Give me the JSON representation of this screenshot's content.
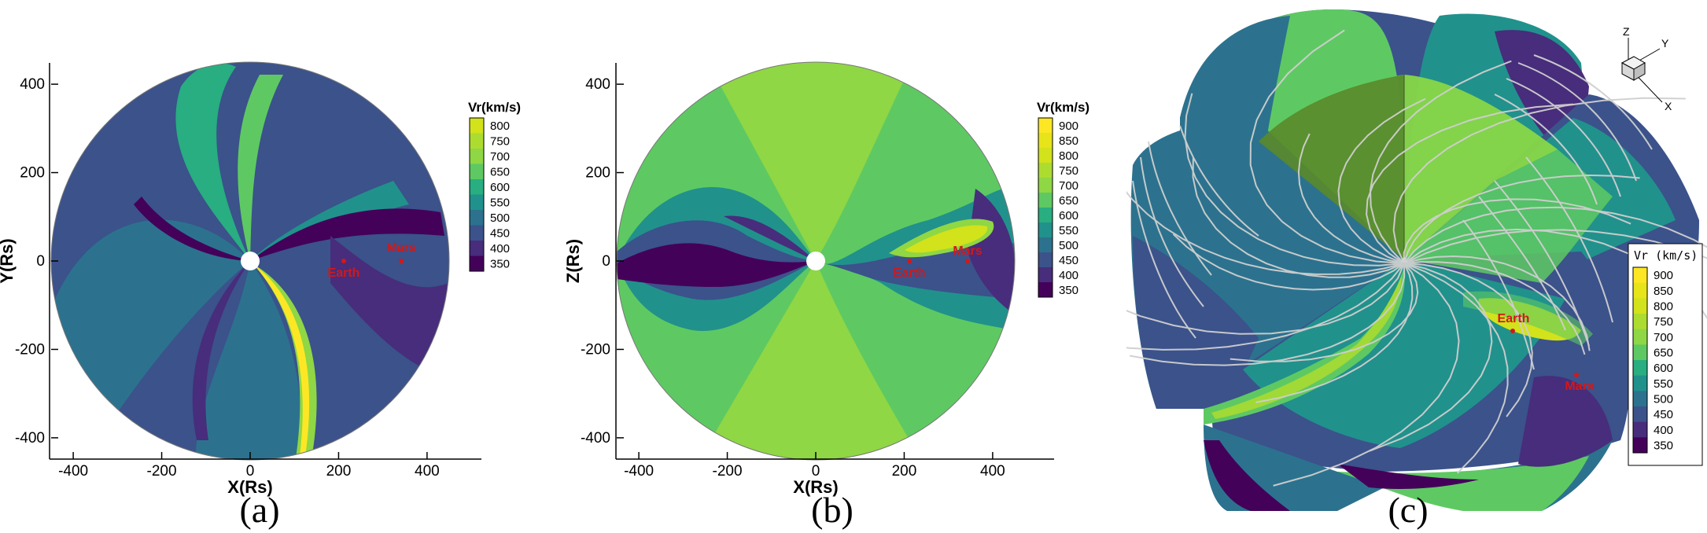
{
  "figure": {
    "panels": [
      {
        "caption": "(a)",
        "xlabel": "X(Rs)",
        "ylabel": "Y(Rs)",
        "xticks": [
          "-400",
          "-200",
          "0",
          "200",
          "400"
        ],
        "yticks": [
          "400",
          "200",
          "0",
          "-200",
          "-400"
        ],
        "colorbar_title": "Vr(km/s)",
        "colorbar_levels": [
          "800",
          "750",
          "700",
          "650",
          "600",
          "550",
          "500",
          "450",
          "400",
          "350"
        ],
        "markers": [
          "Earth",
          "Mars"
        ]
      },
      {
        "caption": "(b)",
        "xlabel": "X(Rs)",
        "ylabel": "Z(Rs)",
        "xticks": [
          "-400",
          "-200",
          "0",
          "200",
          "400"
        ],
        "yticks": [
          "400",
          "200",
          "0",
          "-200",
          "-400"
        ],
        "colorbar_title": "Vr(km/s)",
        "colorbar_levels": [
          "900",
          "850",
          "800",
          "750",
          "700",
          "650",
          "600",
          "550",
          "500",
          "450",
          "400",
          "350"
        ],
        "markers": [
          "Earth",
          "Mars"
        ]
      },
      {
        "caption": "(c)",
        "axes_triad": [
          "Z",
          "Y",
          "X"
        ],
        "colorbar_title": "Vr (km/s)",
        "colorbar_levels": [
          "900",
          "850",
          "800",
          "750",
          "700",
          "650",
          "600",
          "550",
          "500",
          "450",
          "400",
          "350"
        ],
        "markers": [
          "Earth",
          "Mars"
        ]
      }
    ],
    "palette": {
      "350": "#44015a",
      "400": "#472d7b",
      "450": "#3b528b",
      "500": "#2c728e",
      "550": "#21918c",
      "600": "#28ae80",
      "650": "#5ec962",
      "700": "#8fd744",
      "750": "#addc30",
      "800": "#d2e21b",
      "850": "#e7e419",
      "900": "#fde725"
    },
    "marker_color": "#d31818"
  },
  "chart_data": [
    {
      "type": "heatmap",
      "title": "",
      "xlabel": "X(Rs)",
      "ylabel": "Y(Rs)",
      "xlim": [
        -450,
        450
      ],
      "ylim": [
        -450,
        450
      ],
      "grid": false,
      "legend": "right (colorbar)",
      "colorbar": {
        "label": "Vr(km/s)",
        "range": [
          350,
          800
        ],
        "step": 50
      },
      "points": [
        {
          "name": "Earth",
          "x": 215,
          "y": 0
        },
        {
          "name": "Mars",
          "x": 345,
          "y": 0
        }
      ]
    },
    {
      "type": "heatmap",
      "title": "",
      "xlabel": "X(Rs)",
      "ylabel": "Z(Rs)",
      "xlim": [
        -450,
        450
      ],
      "ylim": [
        -450,
        450
      ],
      "grid": false,
      "legend": "right (colorbar)",
      "colorbar": {
        "label": "Vr(km/s)",
        "range": [
          350,
          900
        ],
        "step": 50
      },
      "points": [
        {
          "name": "Earth",
          "x": 215,
          "y": 0
        },
        {
          "name": "Mars",
          "x": 345,
          "y": 0
        }
      ]
    },
    {
      "type": "heatmap",
      "title": "",
      "legend": "right (colorbar)",
      "colorbar": {
        "label": "Vr (km/s)",
        "range": [
          350,
          900
        ],
        "step": 50
      },
      "points": [
        {
          "name": "Earth"
        },
        {
          "name": "Mars"
        }
      ]
    }
  ]
}
